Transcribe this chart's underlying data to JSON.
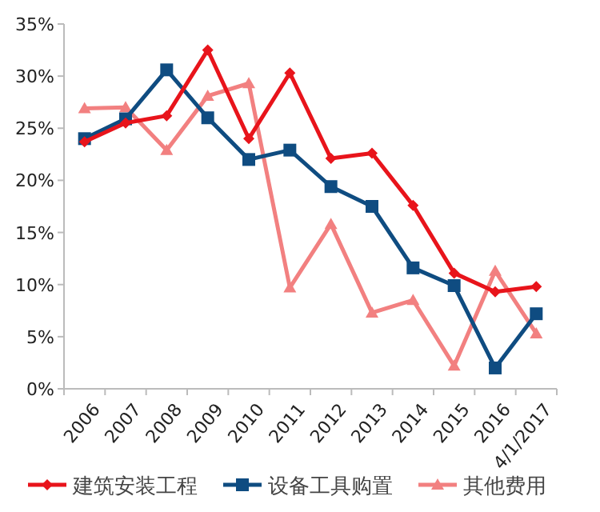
{
  "chart_data": {
    "type": "line",
    "categories": [
      "2006",
      "2007",
      "2008",
      "2009",
      "2010",
      "2011",
      "2012",
      "2013",
      "2014",
      "2015",
      "2016",
      "4/1/2017"
    ],
    "series": [
      {
        "name": "建筑安装工程",
        "color": "#e8141b",
        "marker": "diamond",
        "values": [
          23.7,
          25.5,
          26.2,
          32.5,
          24.0,
          30.3,
          22.1,
          22.6,
          17.6,
          11.1,
          9.3,
          9.8
        ]
      },
      {
        "name": "设备工具购置",
        "color": "#0f4c81",
        "marker": "square",
        "values": [
          24.0,
          25.9,
          30.6,
          26.0,
          22.0,
          22.9,
          19.4,
          17.5,
          11.6,
          9.9,
          2.0,
          7.2
        ]
      },
      {
        "name": "其他费用",
        "color": "#f28080",
        "marker": "triangle",
        "values": [
          26.9,
          27.0,
          22.9,
          28.1,
          29.3,
          9.7,
          15.8,
          7.3,
          8.5,
          2.2,
          11.3,
          5.3
        ]
      }
    ],
    "ylim": [
      0,
      35
    ],
    "yticks": [
      {
        "value": 0,
        "label": "0%"
      },
      {
        "value": 5,
        "label": "5%"
      },
      {
        "value": 10,
        "label": "10%"
      },
      {
        "value": 15,
        "label": "15%"
      },
      {
        "value": 20,
        "label": "20%"
      },
      {
        "value": 25,
        "label": "25%"
      },
      {
        "value": 30,
        "label": "30%"
      },
      {
        "value": 35,
        "label": "35%"
      }
    ],
    "grid": false,
    "legend": "bottom"
  }
}
